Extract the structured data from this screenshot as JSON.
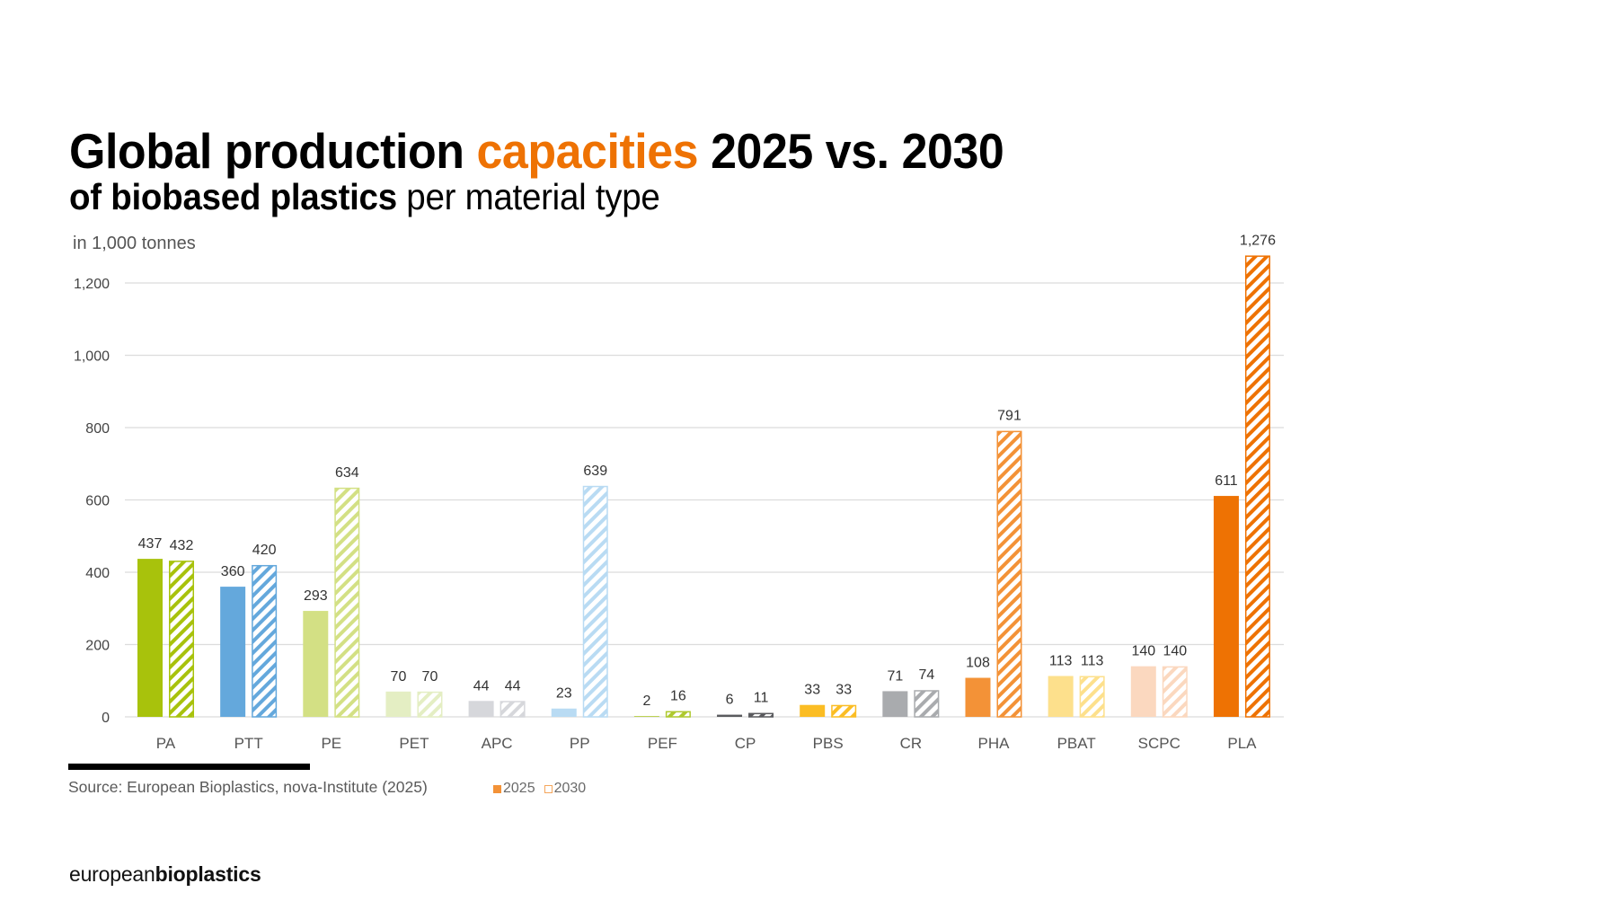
{
  "header": {
    "title_part1": "Global production ",
    "title_accent": "capacities",
    "title_part2": " 2025 vs. 2030",
    "subtitle_bold": "of biobased plastics",
    "subtitle_rest": " per material type",
    "accent_color": "#ee7203"
  },
  "chart_data": {
    "type": "bar",
    "title": "Global production capacities 2025 vs. 2030 of biobased plastics per material type",
    "ylabel": "in 1,000 tonnes",
    "xlabel": "",
    "ylim": [
      0,
      1200
    ],
    "yticks": [
      0,
      200,
      400,
      600,
      800,
      1000,
      1200
    ],
    "ytick_labels": [
      "0",
      "200",
      "400",
      "600",
      "800",
      "1,000",
      "1,200"
    ],
    "grid": true,
    "legend_position": "bottom-left",
    "categories": [
      "PA",
      "PTT",
      "PE",
      "PET",
      "APC",
      "PP",
      "PEF",
      "CP",
      "PBS",
      "CR",
      "PHA",
      "PBAT",
      "SCPC",
      "PLA"
    ],
    "category_colors": [
      "#a8c20c",
      "#64a8dc",
      "#d3e084",
      "#e4eec3",
      "#d6d7db",
      "#b9dbf3",
      "#aec92e",
      "#5a5b5e",
      "#fbbd24",
      "#a9abae",
      "#f39237",
      "#fde08c",
      "#fbd8bf",
      "#ee7203"
    ],
    "series": [
      {
        "name": "2025",
        "style": "solid",
        "values": [
          437,
          360,
          293,
          70,
          44,
          23,
          2,
          6,
          33,
          71,
          108,
          113,
          140,
          611
        ],
        "labels": [
          "437",
          "360",
          "293",
          "70",
          "44",
          "23",
          "2",
          "6",
          "33",
          "71",
          "108",
          "113",
          "140",
          "611"
        ]
      },
      {
        "name": "2030",
        "style": "hatched",
        "values": [
          432,
          420,
          634,
          70,
          44,
          639,
          16,
          11,
          33,
          74,
          791,
          113,
          140,
          1276
        ],
        "labels": [
          "432",
          "420",
          "634",
          "70",
          "44",
          "639",
          "16",
          "11",
          "33",
          "74",
          "791",
          "113",
          "140",
          "1,276"
        ]
      }
    ]
  },
  "footer": {
    "source": "Source: European Bioplastics, nova-Institute (2025)",
    "legend": [
      {
        "label": "2025",
        "style": "solid"
      },
      {
        "label": "2030",
        "style": "hatched"
      }
    ],
    "logo_light": "european",
    "logo_bold": "bioplastics"
  }
}
